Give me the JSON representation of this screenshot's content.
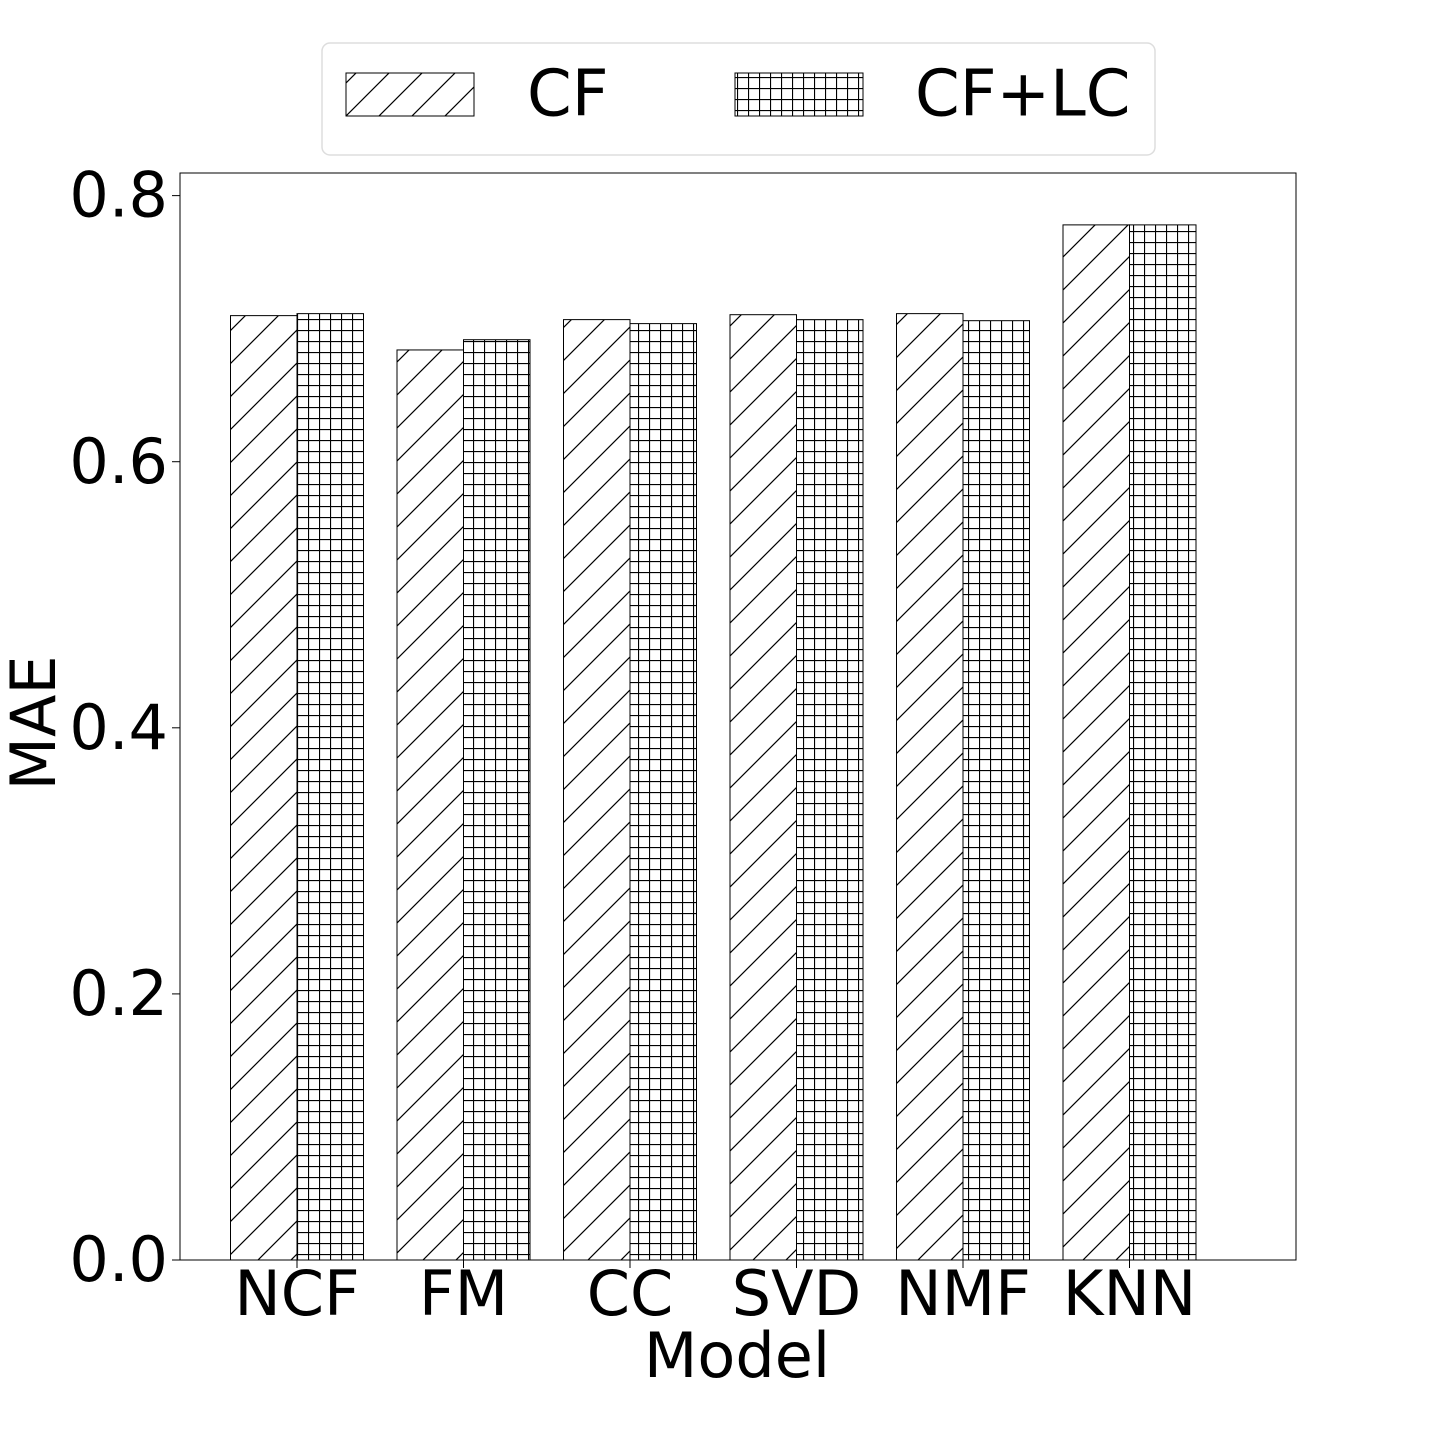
{
  "chart_data": {
    "type": "bar",
    "categories": [
      "NCF",
      "FM",
      "CC",
      "SVD",
      "NMF",
      "KNN"
    ],
    "series": [
      {
        "name": "CF",
        "color": "#000000",
        "hatch": "/",
        "values": [
          0.7098,
          0.684,
          0.7068,
          0.7105,
          0.7113,
          0.778
        ]
      },
      {
        "name": "CF+LC",
        "color": "#000000",
        "hatch": "+",
        "values": [
          0.7113,
          0.6917,
          0.7038,
          0.7068,
          0.706,
          0.778
        ]
      }
    ],
    "xlabel": "Model",
    "ylabel": "MAE",
    "ylim": [
      0,
      0.817
    ],
    "yticks": [
      {
        "value": 0,
        "label": "0.0"
      },
      0.2,
      0.4,
      0.6,
      0.8
    ],
    "legend": "top"
  }
}
